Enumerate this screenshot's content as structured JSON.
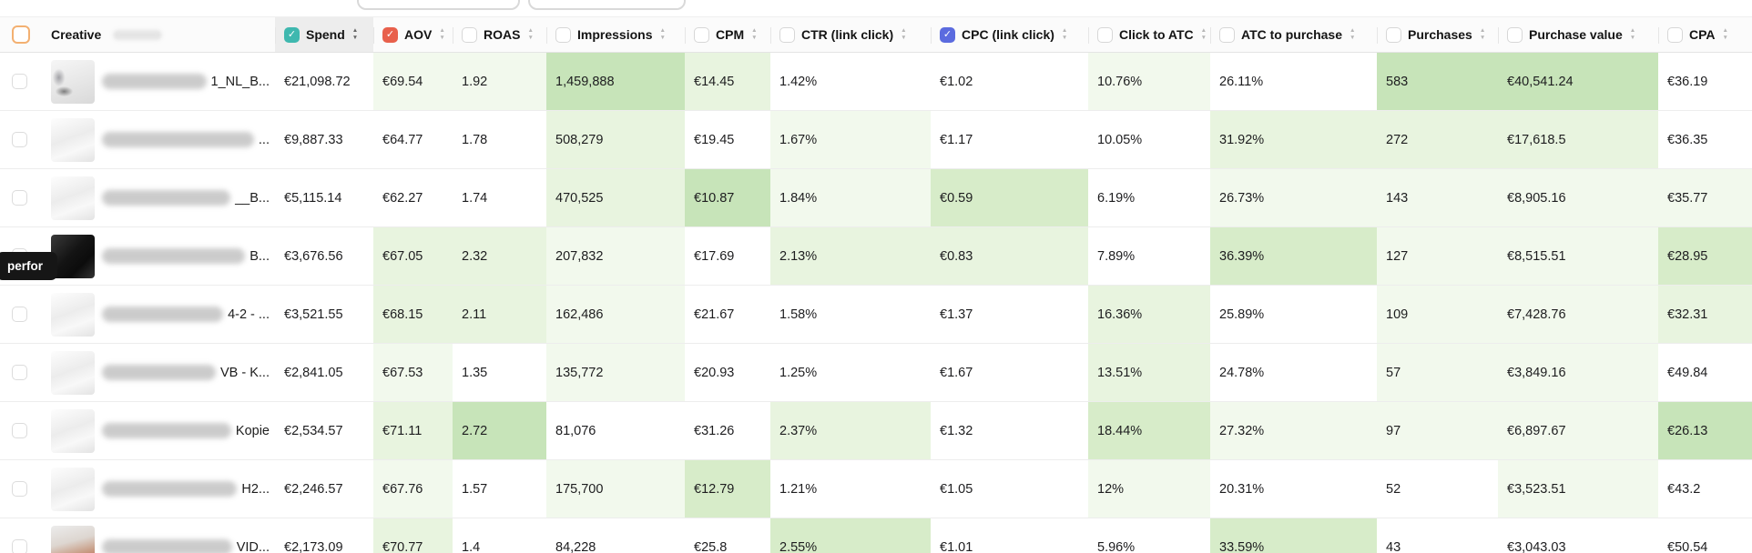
{
  "header": {
    "creative_label": "Creative",
    "columns": [
      {
        "key": "spend",
        "label": "Spend",
        "checked": true,
        "check_color": "#3fb8af",
        "sorted": true
      },
      {
        "key": "aov",
        "label": "AOV",
        "checked": true,
        "check_color": "#e8604c",
        "sorted": false
      },
      {
        "key": "roas",
        "label": "ROAS",
        "checked": false,
        "sorted": false
      },
      {
        "key": "impressions",
        "label": "Impressions",
        "checked": false,
        "sorted": false
      },
      {
        "key": "cpm",
        "label": "CPM",
        "checked": false,
        "sorted": false
      },
      {
        "key": "ctr",
        "label": "CTR (link click)",
        "checked": false,
        "sorted": false
      },
      {
        "key": "cpc",
        "label": "CPC (link click)",
        "checked": true,
        "check_color": "#5b6bdf",
        "sorted": false
      },
      {
        "key": "click_to_atc",
        "label": "Click to ATC",
        "checked": false,
        "sorted": false
      },
      {
        "key": "atc_to_purchase",
        "label": "ATC to purchase",
        "checked": false,
        "sorted": false
      },
      {
        "key": "purchases",
        "label": "Purchases",
        "checked": false,
        "sorted": false
      },
      {
        "key": "purchase_value",
        "label": "Purchase value",
        "checked": false,
        "sorted": false
      },
      {
        "key": "cpa",
        "label": "CPA",
        "checked": false,
        "sorted": false
      }
    ]
  },
  "tooltip": {
    "text": "perfor"
  },
  "heat_colors": {
    "s": "#c7e4b9",
    "m": "#d7ecc9",
    "l": "#e8f4df",
    "vl": "#f2f9ed",
    "w": "#ffffff"
  },
  "rows": [
    {
      "name_fragment": "1_NL_B...",
      "thumb": "sketch",
      "cells": {
        "spend": {
          "v": "€21,098.72",
          "c": "w"
        },
        "aov": {
          "v": "€69.54",
          "c": "vl"
        },
        "roas": {
          "v": "1.92",
          "c": "vl"
        },
        "impressions": {
          "v": "1,459,888",
          "c": "s"
        },
        "cpm": {
          "v": "€14.45",
          "c": "l"
        },
        "ctr": {
          "v": "1.42%",
          "c": "w"
        },
        "cpc": {
          "v": "€1.02",
          "c": "w"
        },
        "click_to_atc": {
          "v": "10.76%",
          "c": "vl"
        },
        "atc_to_purchase": {
          "v": "26.11%",
          "c": "w"
        },
        "purchases": {
          "v": "583",
          "c": "s"
        },
        "purchase_value": {
          "v": "€40,541.24",
          "c": "s"
        },
        "cpa": {
          "v": "€36.19",
          "c": "w"
        }
      }
    },
    {
      "name_fragment": "...",
      "thumb": "light",
      "cells": {
        "spend": {
          "v": "€9,887.33",
          "c": "w"
        },
        "aov": {
          "v": "€64.77",
          "c": "w"
        },
        "roas": {
          "v": "1.78",
          "c": "w"
        },
        "impressions": {
          "v": "508,279",
          "c": "l"
        },
        "cpm": {
          "v": "€19.45",
          "c": "w"
        },
        "ctr": {
          "v": "1.67%",
          "c": "vl"
        },
        "cpc": {
          "v": "€1.17",
          "c": "w"
        },
        "click_to_atc": {
          "v": "10.05%",
          "c": "w"
        },
        "atc_to_purchase": {
          "v": "31.92%",
          "c": "l"
        },
        "purchases": {
          "v": "272",
          "c": "l"
        },
        "purchase_value": {
          "v": "€17,618.5",
          "c": "l"
        },
        "cpa": {
          "v": "€36.35",
          "c": "w"
        }
      }
    },
    {
      "name_fragment": "__B...",
      "thumb": "light",
      "cells": {
        "spend": {
          "v": "€5,115.14",
          "c": "w"
        },
        "aov": {
          "v": "€62.27",
          "c": "w"
        },
        "roas": {
          "v": "1.74",
          "c": "w"
        },
        "impressions": {
          "v": "470,525",
          "c": "l"
        },
        "cpm": {
          "v": "€10.87",
          "c": "s"
        },
        "ctr": {
          "v": "1.84%",
          "c": "vl"
        },
        "cpc": {
          "v": "€0.59",
          "c": "m"
        },
        "click_to_atc": {
          "v": "6.19%",
          "c": "w"
        },
        "atc_to_purchase": {
          "v": "26.73%",
          "c": "vl"
        },
        "purchases": {
          "v": "143",
          "c": "vl"
        },
        "purchase_value": {
          "v": "€8,905.16",
          "c": "vl"
        },
        "cpa": {
          "v": "€35.77",
          "c": "vl"
        }
      }
    },
    {
      "name_fragment": "B...",
      "thumb": "dark",
      "cells": {
        "spend": {
          "v": "€3,676.56",
          "c": "w"
        },
        "aov": {
          "v": "€67.05",
          "c": "l"
        },
        "roas": {
          "v": "2.32",
          "c": "l"
        },
        "impressions": {
          "v": "207,832",
          "c": "vl"
        },
        "cpm": {
          "v": "€17.69",
          "c": "w"
        },
        "ctr": {
          "v": "2.13%",
          "c": "l"
        },
        "cpc": {
          "v": "€0.83",
          "c": "l"
        },
        "click_to_atc": {
          "v": "7.89%",
          "c": "w"
        },
        "atc_to_purchase": {
          "v": "36.39%",
          "c": "m"
        },
        "purchases": {
          "v": "127",
          "c": "vl"
        },
        "purchase_value": {
          "v": "€8,515.51",
          "c": "vl"
        },
        "cpa": {
          "v": "€28.95",
          "c": "m"
        }
      }
    },
    {
      "name_fragment": "4-2 - ...",
      "thumb": "light",
      "cells": {
        "spend": {
          "v": "€3,521.55",
          "c": "w"
        },
        "aov": {
          "v": "€68.15",
          "c": "l"
        },
        "roas": {
          "v": "2.11",
          "c": "l"
        },
        "impressions": {
          "v": "162,486",
          "c": "vl"
        },
        "cpm": {
          "v": "€21.67",
          "c": "w"
        },
        "ctr": {
          "v": "1.58%",
          "c": "w"
        },
        "cpc": {
          "v": "€1.37",
          "c": "w"
        },
        "click_to_atc": {
          "v": "16.36%",
          "c": "l"
        },
        "atc_to_purchase": {
          "v": "25.89%",
          "c": "w"
        },
        "purchases": {
          "v": "109",
          "c": "vl"
        },
        "purchase_value": {
          "v": "€7,428.76",
          "c": "vl"
        },
        "cpa": {
          "v": "€32.31",
          "c": "l"
        }
      }
    },
    {
      "name_fragment": "VB - K...",
      "thumb": "light",
      "cells": {
        "spend": {
          "v": "€2,841.05",
          "c": "w"
        },
        "aov": {
          "v": "€67.53",
          "c": "vl"
        },
        "roas": {
          "v": "1.35",
          "c": "w"
        },
        "impressions": {
          "v": "135,772",
          "c": "vl"
        },
        "cpm": {
          "v": "€20.93",
          "c": "w"
        },
        "ctr": {
          "v": "1.25%",
          "c": "w"
        },
        "cpc": {
          "v": "€1.67",
          "c": "w"
        },
        "click_to_atc": {
          "v": "13.51%",
          "c": "l"
        },
        "atc_to_purchase": {
          "v": "24.78%",
          "c": "w"
        },
        "purchases": {
          "v": "57",
          "c": "vl"
        },
        "purchase_value": {
          "v": "€3,849.16",
          "c": "vl"
        },
        "cpa": {
          "v": "€49.84",
          "c": "w"
        }
      }
    },
    {
      "name_fragment": "Kopie",
      "thumb": "light",
      "cells": {
        "spend": {
          "v": "€2,534.57",
          "c": "w"
        },
        "aov": {
          "v": "€71.11",
          "c": "l"
        },
        "roas": {
          "v": "2.72",
          "c": "s"
        },
        "impressions": {
          "v": "81,076",
          "c": "w"
        },
        "cpm": {
          "v": "€31.26",
          "c": "w"
        },
        "ctr": {
          "v": "2.37%",
          "c": "l"
        },
        "cpc": {
          "v": "€1.32",
          "c": "w"
        },
        "click_to_atc": {
          "v": "18.44%",
          "c": "m"
        },
        "atc_to_purchase": {
          "v": "27.32%",
          "c": "vl"
        },
        "purchases": {
          "v": "97",
          "c": "vl"
        },
        "purchase_value": {
          "v": "€6,897.67",
          "c": "vl"
        },
        "cpa": {
          "v": "€26.13",
          "c": "s"
        }
      }
    },
    {
      "name_fragment": "H2...",
      "thumb": "light",
      "cells": {
        "spend": {
          "v": "€2,246.57",
          "c": "w"
        },
        "aov": {
          "v": "€67.76",
          "c": "vl"
        },
        "roas": {
          "v": "1.57",
          "c": "w"
        },
        "impressions": {
          "v": "175,700",
          "c": "vl"
        },
        "cpm": {
          "v": "€12.79",
          "c": "m"
        },
        "ctr": {
          "v": "1.21%",
          "c": "w"
        },
        "cpc": {
          "v": "€1.05",
          "c": "w"
        },
        "click_to_atc": {
          "v": "12%",
          "c": "vl"
        },
        "atc_to_purchase": {
          "v": "20.31%",
          "c": "w"
        },
        "purchases": {
          "v": "52",
          "c": "w"
        },
        "purchase_value": {
          "v": "€3,523.51",
          "c": "vl"
        },
        "cpa": {
          "v": "€43.2",
          "c": "w"
        }
      }
    },
    {
      "name_fragment": "VID...",
      "thumb": "photo",
      "cells": {
        "spend": {
          "v": "€2,173.09",
          "c": "w"
        },
        "aov": {
          "v": "€70.77",
          "c": "l"
        },
        "roas": {
          "v": "1.4",
          "c": "w"
        },
        "impressions": {
          "v": "84,228",
          "c": "w"
        },
        "cpm": {
          "v": "€25.8",
          "c": "w"
        },
        "ctr": {
          "v": "2.55%",
          "c": "m"
        },
        "cpc": {
          "v": "€1.01",
          "c": "w"
        },
        "click_to_atc": {
          "v": "5.96%",
          "c": "w"
        },
        "atc_to_purchase": {
          "v": "33.59%",
          "c": "m"
        },
        "purchases": {
          "v": "43",
          "c": "w"
        },
        "purchase_value": {
          "v": "€3,043.03",
          "c": "w"
        },
        "cpa": {
          "v": "€50.54",
          "c": "w"
        }
      }
    }
  ]
}
